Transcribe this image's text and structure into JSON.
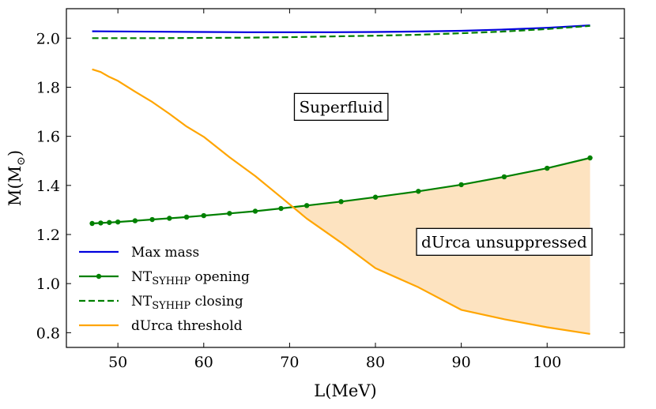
{
  "chart_data": {
    "type": "line",
    "xlabel": "L(MeV)",
    "ylabel": "M(M",
    "ylabel_sub": "⊙",
    "ylabel_close": ")",
    "xlim": [
      44,
      109
    ],
    "ylim": [
      0.74,
      2.12
    ],
    "xticks": [
      50,
      60,
      70,
      80,
      90,
      100
    ],
    "yticks": [
      0.8,
      1.0,
      1.2,
      1.4,
      1.6,
      1.8,
      2.0
    ],
    "xtick_labels": [
      "50",
      "60",
      "70",
      "80",
      "90",
      "100"
    ],
    "ytick_labels": [
      "0.8",
      "1.0",
      "1.2",
      "1.4",
      "1.6",
      "1.8",
      "2.0"
    ],
    "series": [
      {
        "name": "Max mass",
        "color": "#0000dd",
        "style": "solid",
        "markers": false,
        "x": [
          47,
          55,
          60,
          65,
          70,
          75,
          80,
          85,
          90,
          95,
          100,
          105
        ],
        "y": [
          2.028,
          2.026,
          2.025,
          2.024,
          2.024,
          2.024,
          2.025,
          2.027,
          2.03,
          2.035,
          2.042,
          2.052
        ]
      },
      {
        "name": "NT",
        "sub": "SYHHP",
        "suffix": " opening",
        "color": "#008000",
        "style": "solid",
        "markers": true,
        "x": [
          47,
          48,
          49,
          50,
          52,
          54,
          56,
          58,
          60,
          63,
          66,
          69,
          72,
          76,
          80,
          85,
          90,
          95,
          100,
          105
        ],
        "y": [
          1.245,
          1.247,
          1.249,
          1.251,
          1.256,
          1.261,
          1.266,
          1.271,
          1.277,
          1.286,
          1.295,
          1.306,
          1.318,
          1.334,
          1.352,
          1.376,
          1.403,
          1.435,
          1.47,
          1.512
        ]
      },
      {
        "name": "NT",
        "sub": "SYHHP",
        "suffix": " closing",
        "color": "#008000",
        "style": "dashed",
        "markers": false,
        "x": [
          47,
          55,
          60,
          65,
          70,
          75,
          80,
          85,
          90,
          95,
          100,
          105
        ],
        "y": [
          2.0,
          2.0,
          2.001,
          2.002,
          2.004,
          2.007,
          2.01,
          2.014,
          2.02,
          2.027,
          2.037,
          2.05
        ]
      },
      {
        "name": "dUrca threshold",
        "color": "#ffa500",
        "style": "solid",
        "markers": false,
        "x": [
          47,
          48,
          49,
          50,
          52,
          54,
          56,
          58,
          60,
          63,
          66,
          69,
          72,
          76,
          80,
          85,
          90,
          95,
          100,
          105
        ],
        "y": [
          1.873,
          1.862,
          1.842,
          1.826,
          1.782,
          1.74,
          1.692,
          1.64,
          1.598,
          1.515,
          1.438,
          1.352,
          1.265,
          1.167,
          1.063,
          0.985,
          0.893,
          0.855,
          0.822,
          0.795
        ]
      }
    ],
    "legend": {
      "placement": "lower-left",
      "entries": [
        {
          "name": "Max mass",
          "sub": "",
          "suffix": ""
        },
        {
          "name": "NT",
          "sub": "SYHHP",
          "suffix": " opening"
        },
        {
          "name": "NT",
          "sub": "SYHHP",
          "suffix": " closing"
        },
        {
          "name": "dUrca threshold",
          "sub": "",
          "suffix": ""
        }
      ]
    },
    "fill": {
      "label": "dUrca unsuppressed region",
      "color": "#fde3c0",
      "between": [
        "NT opening",
        "dUrca threshold"
      ],
      "where": "opening above threshold"
    },
    "annotations": [
      {
        "text": "Superfluid",
        "x": 76,
        "y": 1.72
      },
      {
        "text": "dUrca unsuppressed",
        "x": 95,
        "y": 1.17
      }
    ]
  }
}
